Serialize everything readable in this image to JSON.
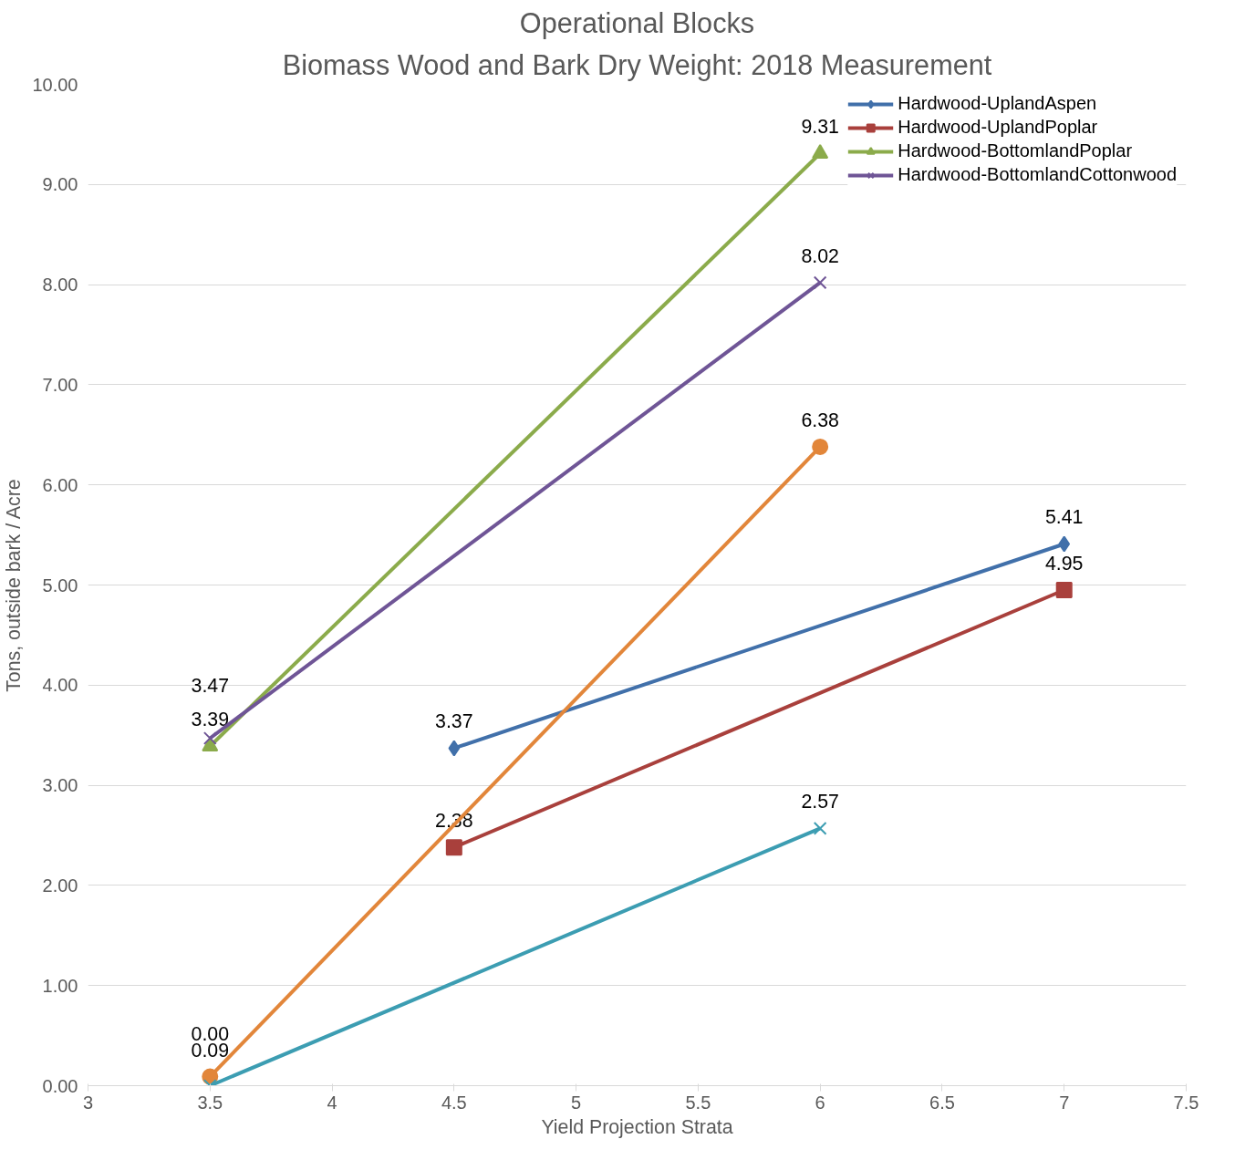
{
  "chart_data": {
    "type": "line",
    "title": "Operational Blocks",
    "subtitle": "Biomass Wood and Bark Dry Weight: 2018 Measurement",
    "xlabel": "Yield Projection Strata",
    "ylabel": "Tons, outside bark / Acre",
    "xlim": [
      3,
      7.5
    ],
    "xticks": [
      3,
      3.5,
      4,
      4.5,
      5,
      5.5,
      6,
      6.5,
      7,
      7.5
    ],
    "ylim": [
      0,
      10
    ],
    "yticks": [
      {
        "value": 0,
        "label": "0.00"
      },
      {
        "value": 1,
        "label": "1.00"
      },
      {
        "value": 2,
        "label": "2.00"
      },
      {
        "value": 3,
        "label": "3.00"
      },
      {
        "value": 4,
        "label": "4.00"
      },
      {
        "value": 5,
        "label": "5.00"
      },
      {
        "value": 6,
        "label": "6.00"
      },
      {
        "value": 7,
        "label": "7.00"
      },
      {
        "value": 8,
        "label": "8.00"
      },
      {
        "value": 9,
        "label": "9.00"
      },
      {
        "value": 10,
        "label": "10.00"
      }
    ],
    "grid": "y",
    "legend": "top right",
    "line_style": "solid",
    "series": [
      {
        "name": "Hardwood-UplandAspen",
        "color": "#4170aa",
        "marker": "diamond",
        "x": [
          4.5,
          7
        ],
        "values": [
          3.37,
          5.41
        ],
        "value_labels": [
          "3.37",
          "5.41"
        ]
      },
      {
        "name": "Hardwood-UplandPoplar",
        "color": "#a9403c",
        "marker": "square",
        "x": [
          4.5,
          7
        ],
        "values": [
          2.38,
          4.95
        ],
        "value_labels": [
          "2.38",
          "4.95"
        ]
      },
      {
        "name": "Hardwood-BottomlandPoplar",
        "color": "#8bab4b",
        "marker": "triangle",
        "x": [
          3.5,
          6
        ],
        "values": [
          3.39,
          9.31
        ],
        "value_labels": [
          "3.39",
          "9.31"
        ]
      },
      {
        "name": "Hardwood-BottomlandCottonwood",
        "color": "#6f5596",
        "marker": "cross",
        "x": [
          3.5,
          6
        ],
        "values": [
          3.47,
          8.02
        ],
        "value_labels": [
          "3.47",
          "8.02"
        ]
      },
      {
        "color": "#e2863a",
        "marker": "circle",
        "x": [
          3.5,
          6
        ],
        "values": [
          0.09,
          6.38
        ],
        "value_labels": [
          "0.09",
          "6.38"
        ]
      },
      {
        "color": "#3c9db2",
        "marker": "cross",
        "x": [
          3.5,
          6
        ],
        "values": [
          0,
          2.57
        ],
        "value_labels": [
          "0.00",
          "2.57"
        ]
      }
    ]
  }
}
